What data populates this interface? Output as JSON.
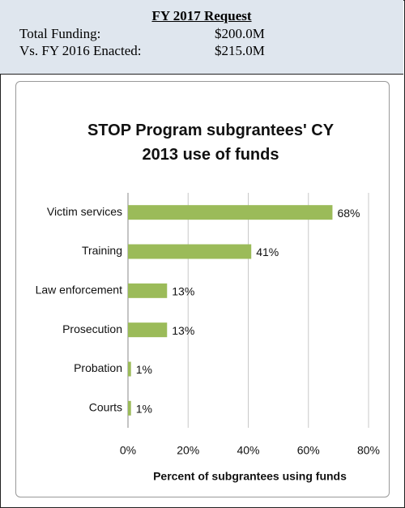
{
  "header": {
    "title": "FY 2017 Request",
    "rows": [
      [
        "Total Funding:",
        "$200.0M"
      ],
      [
        "Vs. FY 2016 Enacted:",
        "$215.0M"
      ]
    ]
  },
  "chart_data": {
    "type": "bar",
    "orientation": "horizontal",
    "title": "STOP Program subgrantees' CY 2013 use of funds",
    "x_label": "Percent of subgrantees using funds",
    "categories": [
      "Victim services",
      "Training",
      "Law enforcement",
      "Prosecution",
      "Probation",
      "Courts"
    ],
    "values": [
      68,
      41,
      13,
      13,
      1,
      1
    ],
    "value_labels": [
      "68%",
      "41%",
      "13%",
      "13%",
      "1%",
      "1%"
    ],
    "color": "#9bbb59",
    "xlim": [
      0,
      80
    ],
    "xticks": [
      {
        "value": 0,
        "label": "0%"
      },
      {
        "value": 20,
        "label": "20%"
      },
      {
        "value": 40,
        "label": "40%"
      },
      {
        "value": 60,
        "label": "60%"
      },
      {
        "value": 80,
        "label": "80%"
      }
    ],
    "grid": true
  }
}
